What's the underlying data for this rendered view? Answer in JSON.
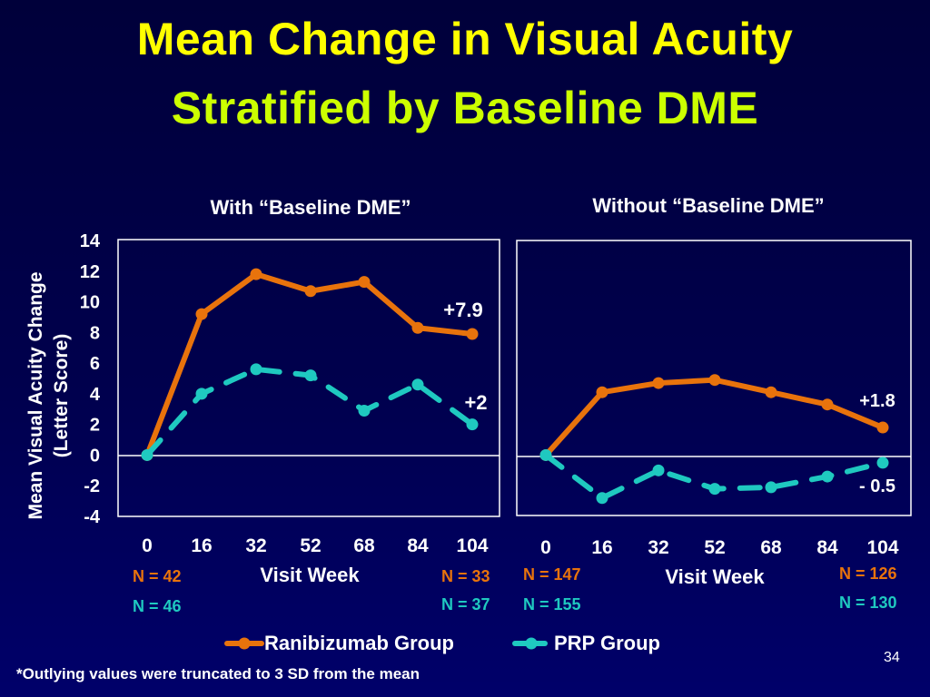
{
  "slide": {
    "title_line1": "Mean Change in Visual Acuity",
    "title_line2": "Stratified by Baseline DME",
    "footnote": "*Outlying values were truncated to 3 SD from the mean",
    "page_number": "34"
  },
  "colors": {
    "ranibizumab": "#e8730c",
    "prp": "#1fc9c0",
    "title1": "#ffff00",
    "title2": "#ccff00",
    "n_ranibizumab": "#e8730c",
    "n_prp": "#1fc9c0"
  },
  "legend": {
    "series1": "Ranibizumab Group",
    "series2": "PRP Group"
  },
  "chart_data": [
    {
      "type": "line",
      "title": "With “Baseline DME”",
      "xlabel": "Visit Week",
      "ylabel": "Mean Visual Acuity Change (Letter Score)",
      "ylabel_line1": "Mean Visual Acuity Change",
      "ylabel_line2": "(Letter Score)",
      "x": [
        "0",
        "16",
        "32",
        "52",
        "68",
        "84",
        "104"
      ],
      "ylim": [
        -4,
        14
      ],
      "yticks": [
        "14",
        "12",
        "10",
        "8",
        "6",
        "4",
        "2",
        "0",
        "-2",
        "-4"
      ],
      "series": [
        {
          "name": "Ranibizumab Group",
          "values": [
            0,
            9.2,
            11.8,
            10.7,
            11.3,
            8.3,
            7.9
          ],
          "end_label": "+7.9"
        },
        {
          "name": "PRP Group",
          "values": [
            0,
            4.0,
            5.6,
            5.2,
            2.9,
            4.6,
            2.0
          ],
          "end_label": "+2"
        }
      ],
      "n_labels": {
        "ranibizumab_start": "N = 42",
        "prp_start": "N = 46",
        "ranibizumab_end": "N = 33",
        "prp_end": "N = 37"
      }
    },
    {
      "type": "line",
      "title": "Without “Baseline DME”",
      "xlabel": "Visit Week",
      "x": [
        "0",
        "16",
        "32",
        "52",
        "68",
        "84",
        "104"
      ],
      "ylim": [
        -4,
        14
      ],
      "series": [
        {
          "name": "Ranibizumab Group",
          "values": [
            0,
            4.1,
            4.7,
            4.9,
            4.1,
            3.3,
            1.8
          ],
          "end_label": "+1.8"
        },
        {
          "name": "PRP Group",
          "values": [
            0,
            -2.8,
            -1.0,
            -2.2,
            -2.1,
            -1.4,
            -0.5
          ],
          "end_label": "- 0.5"
        }
      ],
      "n_labels": {
        "ranibizumab_start": "N = 147",
        "prp_start": "N = 155",
        "ranibizumab_end": "N = 126",
        "prp_end": "N = 130"
      }
    }
  ]
}
